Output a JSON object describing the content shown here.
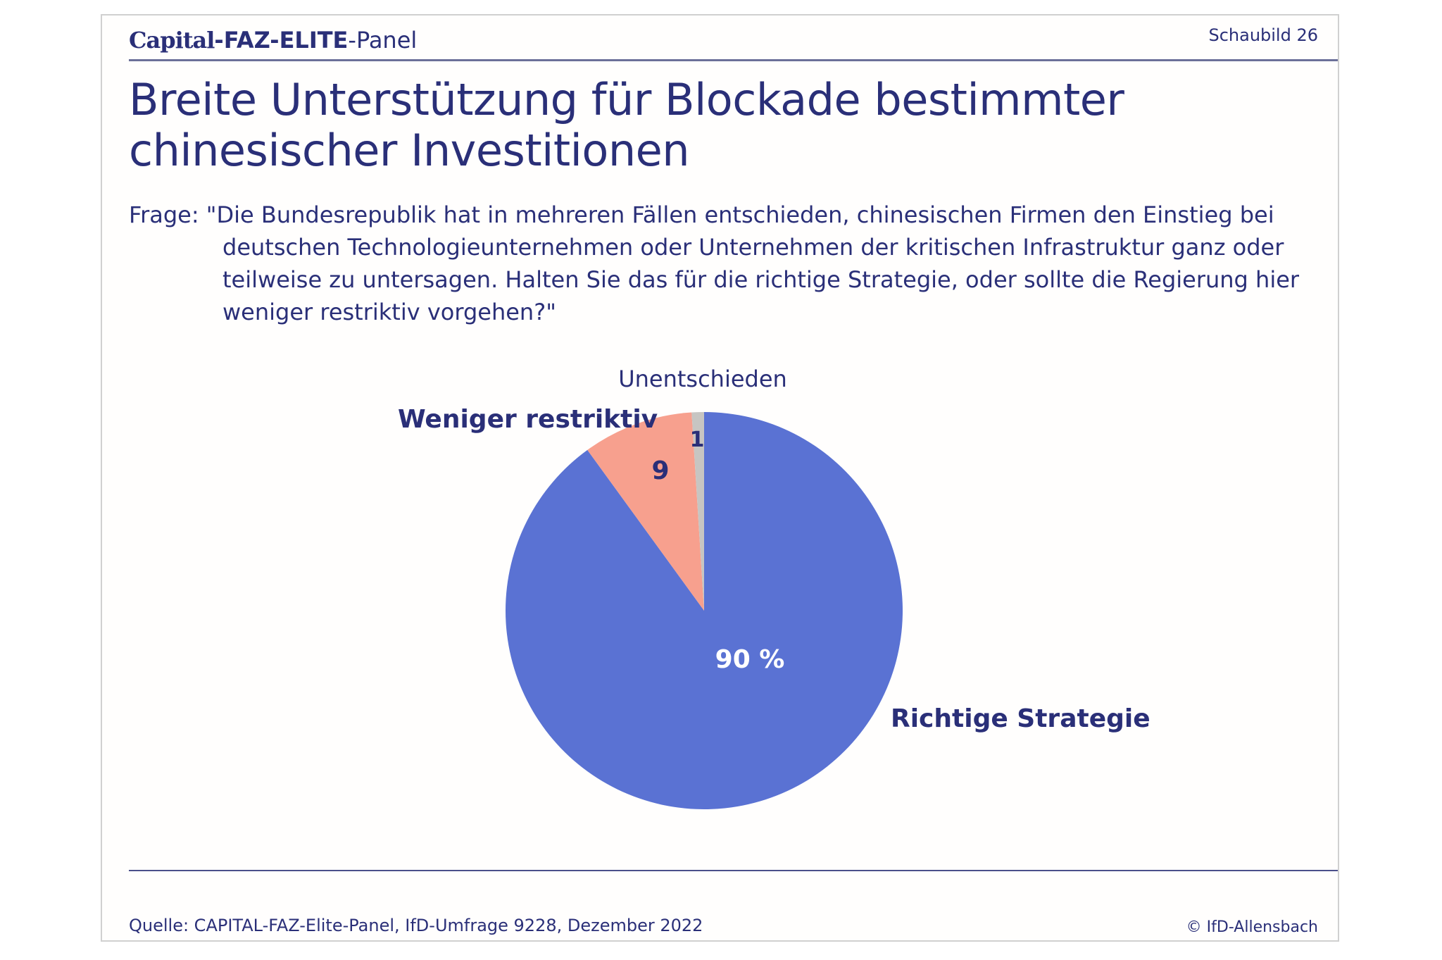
{
  "header": {
    "brand_capital": "Capital",
    "brand_faz": "-FAZ-ELITE",
    "brand_panel": "-Panel",
    "chart_number": "Schaubild 26"
  },
  "title": "Breite Unterstützung für Blockade bestimmter chinesischer Investitionen",
  "question": "Frage: \"Die Bundesrepublik hat in mehreren Fällen entschieden, chinesischen Firmen den Einstieg bei deutschen Technologieunternehmen oder Unternehmen der kritischen Infrastruktur ganz oder teilweise zu untersagen. Halten Sie das für die richtige Strategie, oder sollte die Regierung hier weniger restriktiv vorgehen?\"",
  "footer": {
    "source": "Quelle: CAPITAL-FAZ-Elite-Panel, IfD-Umfrage 9228, Dezember 2022",
    "copyright": "© IfD-Allensbach"
  },
  "colors": {
    "richtige": "#5a72d3",
    "weniger": "#f7a08e",
    "unentschieden": "#c7c5c2",
    "text": "#2a2f78"
  },
  "chart_data": {
    "type": "pie",
    "unit": "%",
    "slices": [
      {
        "label": "Richtige Strategie",
        "value": 90,
        "value_label": "90 %",
        "color": "#5a72d3"
      },
      {
        "label": "Weniger restriktiv",
        "value": 9,
        "value_label": "9",
        "color": "#f7a08e"
      },
      {
        "label": "Unentschieden",
        "value": 1,
        "value_label": "1",
        "color": "#c7c5c2"
      }
    ]
  }
}
